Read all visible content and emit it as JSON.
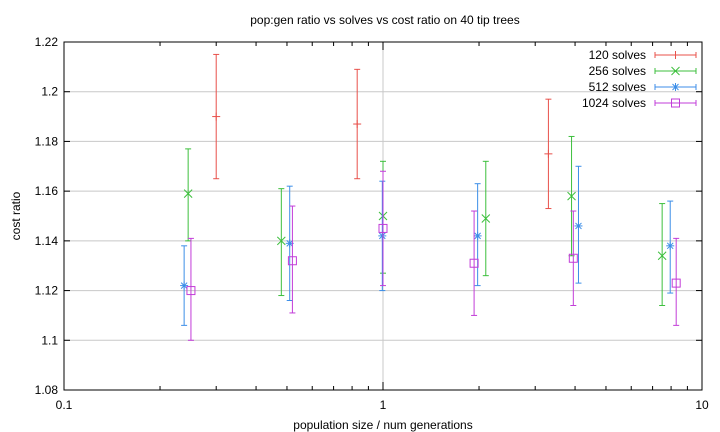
{
  "chart_data": {
    "type": "scatter",
    "title": "pop:gen ratio vs solves vs cost ratio on 40 tip trees",
    "xlabel": "population size / num generations",
    "ylabel": "cost ratio",
    "xscale": "log",
    "xlim": [
      0.1,
      10
    ],
    "ylim": [
      1.08,
      1.22
    ],
    "xticks": [
      0.1,
      1,
      10
    ],
    "xtick_labels": [
      "0.1",
      "1",
      "10"
    ],
    "yticks": [
      1.08,
      1.1,
      1.12,
      1.14,
      1.16,
      1.18,
      1.2,
      1.22
    ],
    "ytick_labels": [
      "1.08",
      "1.1",
      "1.12",
      "1.14",
      "1.16",
      "1.18",
      "1.2",
      "1.22"
    ],
    "grid": true,
    "legend_position": "top-right",
    "error_bars": true,
    "series": [
      {
        "name": "120 solves",
        "color": "#e8504a",
        "marker": "plus",
        "points": [
          {
            "x": 0.3,
            "y": 1.19,
            "ylow": 1.165,
            "yhigh": 1.215
          },
          {
            "x": 0.83,
            "y": 1.187,
            "ylow": 1.165,
            "yhigh": 1.209
          },
          {
            "x": 3.3,
            "y": 1.175,
            "ylow": 1.153,
            "yhigh": 1.197
          }
        ]
      },
      {
        "name": "256 solves",
        "color": "#3cbf3c",
        "marker": "cross",
        "points": [
          {
            "x": 0.245,
            "y": 1.159,
            "ylow": 1.14,
            "yhigh": 1.177
          },
          {
            "x": 0.48,
            "y": 1.14,
            "ylow": 1.118,
            "yhigh": 1.161
          },
          {
            "x": 1.0,
            "y": 1.15,
            "ylow": 1.127,
            "yhigh": 1.172
          },
          {
            "x": 2.1,
            "y": 1.149,
            "ylow": 1.126,
            "yhigh": 1.172
          },
          {
            "x": 3.9,
            "y": 1.158,
            "ylow": 1.134,
            "yhigh": 1.182
          },
          {
            "x": 7.5,
            "y": 1.134,
            "ylow": 1.114,
            "yhigh": 1.155
          }
        ]
      },
      {
        "name": "512 solves",
        "color": "#3c8ee8",
        "marker": "star",
        "points": [
          {
            "x": 0.238,
            "y": 1.122,
            "ylow": 1.106,
            "yhigh": 1.138
          },
          {
            "x": 0.51,
            "y": 1.139,
            "ylow": 1.116,
            "yhigh": 1.162
          },
          {
            "x": 0.995,
            "y": 1.142,
            "ylow": 1.12,
            "yhigh": 1.164
          },
          {
            "x": 1.98,
            "y": 1.142,
            "ylow": 1.122,
            "yhigh": 1.163
          },
          {
            "x": 4.1,
            "y": 1.146,
            "ylow": 1.123,
            "yhigh": 1.17
          },
          {
            "x": 7.95,
            "y": 1.138,
            "ylow": 1.119,
            "yhigh": 1.156
          }
        ]
      },
      {
        "name": "1024 solves",
        "color": "#c23cd8",
        "marker": "square",
        "points": [
          {
            "x": 0.25,
            "y": 1.12,
            "ylow": 1.1,
            "yhigh": 1.141
          },
          {
            "x": 0.52,
            "y": 1.132,
            "ylow": 1.111,
            "yhigh": 1.154
          },
          {
            "x": 1.0,
            "y": 1.145,
            "ylow": 1.122,
            "yhigh": 1.168
          },
          {
            "x": 1.93,
            "y": 1.131,
            "ylow": 1.11,
            "yhigh": 1.152
          },
          {
            "x": 3.95,
            "y": 1.133,
            "ylow": 1.114,
            "yhigh": 1.152
          },
          {
            "x": 8.3,
            "y": 1.123,
            "ylow": 1.106,
            "yhigh": 1.141
          }
        ]
      }
    ]
  }
}
